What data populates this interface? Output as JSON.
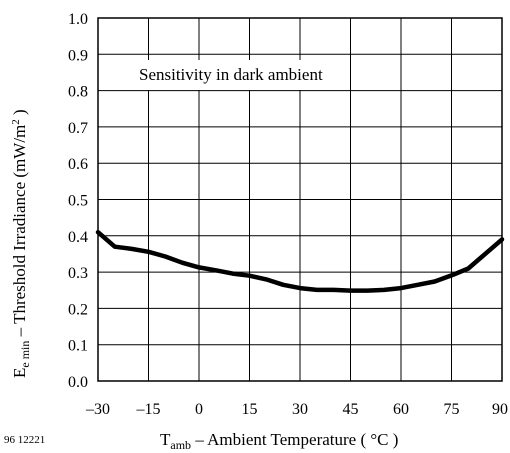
{
  "chart_data": {
    "type": "line",
    "annotation": "Sensitivity in dark ambient",
    "figure_number": "96 12221",
    "xlabel": {
      "main": "T",
      "sub": "amb",
      "rest": " – Ambient Temperature ( °C )"
    },
    "ylabel": {
      "main": "E",
      "sub": "e min",
      "rest": "  – Threshold Irradiance (mW/m",
      "sup": "2",
      "end": " )"
    },
    "xlim": [
      -30,
      90
    ],
    "ylim": [
      0,
      1.0
    ],
    "x_ticks": [
      "–30",
      "–15",
      "0",
      "15",
      "30",
      "45",
      "60",
      "75",
      "90"
    ],
    "y_ticks": [
      "0.0",
      "0.1",
      "0.2",
      "0.3",
      "0.4",
      "0.5",
      "0.6",
      "0.7",
      "0.8",
      "0.9",
      "1.0"
    ],
    "x_tick_values": [
      -30,
      -15,
      0,
      15,
      30,
      45,
      60,
      75,
      90
    ],
    "y_tick_values": [
      0,
      0.1,
      0.2,
      0.3,
      0.4,
      0.5,
      0.6,
      0.7,
      0.8,
      0.9,
      1.0
    ],
    "grid": true,
    "series": [
      {
        "color": "#000000",
        "x": [
          -30,
          -25,
          -20,
          -15,
          -10,
          -5,
          0,
          5,
          10,
          15,
          20,
          25,
          30,
          35,
          40,
          45,
          50,
          55,
          60,
          65,
          70,
          75,
          80,
          85,
          90
        ],
        "y": [
          0.41,
          0.37,
          0.364,
          0.356,
          0.343,
          0.326,
          0.313,
          0.305,
          0.296,
          0.29,
          0.28,
          0.265,
          0.256,
          0.251,
          0.251,
          0.249,
          0.249,
          0.251,
          0.256,
          0.265,
          0.274,
          0.291,
          0.31,
          0.35,
          0.39
        ]
      }
    ]
  }
}
